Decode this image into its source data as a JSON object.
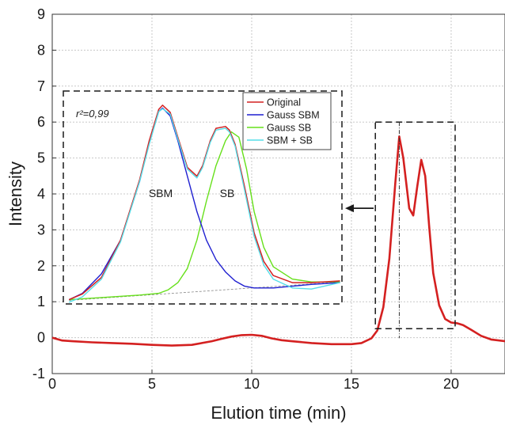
{
  "chart_data": {
    "type": "line",
    "xlabel": "Elution time (min)",
    "ylabel": "Intensity",
    "xlim": [
      0,
      22.7
    ],
    "ylim": [
      -1,
      9
    ],
    "xticks": [
      0,
      5,
      10,
      15,
      20
    ],
    "yticks": [
      -1,
      0,
      1,
      2,
      3,
      4,
      5,
      6,
      7,
      8,
      9
    ],
    "grid": true,
    "colors": {
      "main": "#d42020",
      "original": "#d42020",
      "gauss_sbm": "#1f1fd0",
      "gauss_sb": "#66e01a",
      "sum": "#55dde8",
      "grid": "#c8c8c8",
      "axis": "#333333"
    },
    "main_series": {
      "x": [
        0,
        0.5,
        1,
        2,
        3,
        4,
        5,
        6,
        7,
        8,
        8.5,
        9,
        9.5,
        10,
        10.5,
        11,
        11.5,
        12,
        13,
        14,
        15,
        15.5,
        16,
        16.3,
        16.6,
        16.9,
        17.2,
        17.4,
        17.6,
        17.9,
        18.1,
        18.3,
        18.5,
        18.7,
        18.9,
        19.1,
        19.4,
        19.7,
        20.0,
        20.3,
        20.6,
        21.0,
        21.5,
        22.0,
        22.7
      ],
      "y": [
        0.0,
        -0.08,
        -0.1,
        -0.13,
        -0.15,
        -0.17,
        -0.2,
        -0.22,
        -0.2,
        -0.1,
        -0.03,
        0.03,
        0.07,
        0.08,
        0.05,
        -0.02,
        -0.07,
        -0.1,
        -0.15,
        -0.18,
        -0.18,
        -0.15,
        -0.02,
        0.2,
        0.85,
        2.2,
        4.3,
        5.6,
        5.0,
        3.6,
        3.4,
        4.2,
        4.95,
        4.5,
        3.1,
        1.8,
        0.9,
        0.52,
        0.42,
        0.4,
        0.35,
        0.22,
        0.05,
        -0.05,
        -0.1
      ]
    },
    "zoom_box": {
      "x": [
        16.2,
        20.2
      ],
      "y": [
        0.25,
        6.0
      ],
      "peak_marker_x": 17.4
    },
    "inset": {
      "annotation": "r²=0,99",
      "peak_labels": [
        "SBM",
        "SB"
      ],
      "xlim": [
        0,
        14.6
      ],
      "ylim": [
        1.0,
        7.0
      ],
      "legend": [
        "Original",
        "Gauss SBM",
        "Gauss SB",
        "SBM + SB"
      ],
      "legend_position": "top-right",
      "series": [
        {
          "name": "Original",
          "x": [
            0.3,
            1,
            2,
            3,
            4,
            4.5,
            5,
            5.2,
            5.6,
            6,
            6.5,
            7,
            7.3,
            7.7,
            8,
            8.5,
            8.7,
            9,
            9.5,
            10,
            10.5,
            11,
            12,
            13,
            14.5
          ],
          "y": [
            1.12,
            1.28,
            1.75,
            2.8,
            4.5,
            5.6,
            6.48,
            6.6,
            6.4,
            5.7,
            4.85,
            4.6,
            4.9,
            5.6,
            5.95,
            6.0,
            5.9,
            5.5,
            4.3,
            3.0,
            2.2,
            1.8,
            1.6,
            1.6,
            1.65
          ]
        },
        {
          "name": "Gauss SBM",
          "x": [
            0.3,
            1,
            2,
            3,
            4,
            4.5,
            5,
            5.2,
            5.6,
            6,
            6.5,
            7,
            7.5,
            8,
            8.5,
            9,
            9.5,
            10,
            11,
            12,
            13,
            14.5
          ],
          "y": [
            1.12,
            1.3,
            1.85,
            2.8,
            4.45,
            5.55,
            6.42,
            6.52,
            6.3,
            5.6,
            4.6,
            3.6,
            2.8,
            2.25,
            1.9,
            1.65,
            1.5,
            1.45,
            1.45,
            1.5,
            1.55,
            1.6
          ]
        },
        {
          "name": "Gauss SB",
          "x": [
            0.3,
            2,
            4,
            5,
            5.5,
            6,
            6.5,
            7,
            7.5,
            8,
            8.5,
            8.8,
            9.2,
            9.6,
            10,
            10.5,
            11,
            12,
            13,
            14.5
          ],
          "y": [
            1.12,
            1.18,
            1.25,
            1.3,
            1.4,
            1.6,
            2.0,
            2.8,
            3.9,
            4.9,
            5.6,
            5.85,
            5.7,
            4.8,
            3.6,
            2.6,
            2.05,
            1.7,
            1.62,
            1.62
          ]
        },
        {
          "name": "SBM + SB",
          "x": [
            0.3,
            1,
            2,
            3,
            4,
            4.5,
            5,
            5.2,
            5.6,
            6,
            6.5,
            7,
            7.3,
            7.7,
            8,
            8.5,
            8.7,
            9,
            9.5,
            10,
            10.5,
            11,
            12,
            13,
            14.5
          ],
          "y": [
            1.05,
            1.2,
            1.7,
            2.75,
            4.45,
            5.5,
            6.42,
            6.5,
            6.35,
            5.65,
            4.8,
            4.55,
            4.85,
            5.55,
            5.9,
            5.95,
            5.85,
            5.45,
            4.2,
            2.9,
            2.1,
            1.7,
            1.45,
            1.42,
            1.6
          ]
        },
        {
          "name": "baseline",
          "x": [
            0.3,
            14.5
          ],
          "y": [
            1.1,
            1.62
          ]
        }
      ]
    }
  }
}
